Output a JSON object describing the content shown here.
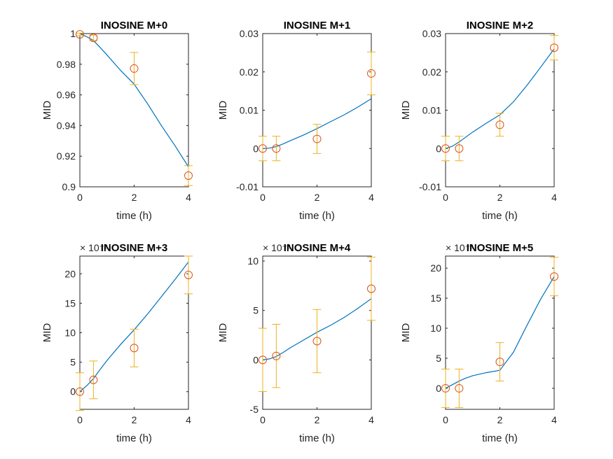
{
  "chart_data": [
    {
      "type": "line",
      "title": "INOSINE M+0",
      "xlabel": "time (h)",
      "ylabel": "MID",
      "exponent": "",
      "xlim": [
        0,
        4
      ],
      "ylim": [
        0.9,
        1.0
      ],
      "xticks": [
        0,
        2,
        4
      ],
      "yticks": [
        0.9,
        0.92,
        0.94,
        0.96,
        0.98,
        1
      ],
      "ytick_labels": [
        "0.9",
        "0.92",
        "0.94",
        "0.96",
        "0.98",
        "1"
      ],
      "fit": {
        "x": [
          0,
          0.25,
          0.5,
          0.75,
          1,
          1.5,
          2,
          2.5,
          3,
          3.5,
          4
        ],
        "y": [
          1.0,
          0.998,
          0.9955,
          0.9908,
          0.986,
          0.976,
          0.967,
          0.954,
          0.94,
          0.927,
          0.913
        ]
      },
      "points": {
        "x": [
          0,
          0.5,
          2,
          4
        ],
        "y": [
          0.9995,
          0.9972,
          0.9772,
          0.9073
        ],
        "err": [
          0.0008,
          0.0018,
          0.0105,
          0.0065
        ]
      }
    },
    {
      "type": "line",
      "title": "INOSINE M+1",
      "xlabel": "time (h)",
      "ylabel": "MID",
      "exponent": "",
      "xlim": [
        0,
        4
      ],
      "ylim": [
        -0.01,
        0.03
      ],
      "xticks": [
        0,
        2,
        4
      ],
      "yticks": [
        -0.01,
        0,
        0.01,
        0.02,
        0.03
      ],
      "ytick_labels": [
        "-0.01",
        "0",
        "0.01",
        "0.02",
        "0.03"
      ],
      "fit": {
        "x": [
          0,
          0.25,
          0.5,
          0.75,
          1,
          1.5,
          2,
          2.5,
          3,
          3.5,
          4
        ],
        "y": [
          0,
          0.0001,
          0.0005,
          0.0012,
          0.002,
          0.0035,
          0.0052,
          0.007,
          0.0088,
          0.0108,
          0.013
        ]
      },
      "points": {
        "x": [
          0,
          0.5,
          2,
          4
        ],
        "y": [
          0,
          0,
          0.0025,
          0.0196
        ],
        "err": [
          0.0032,
          0.0032,
          0.0038,
          0.0056
        ]
      }
    },
    {
      "type": "line",
      "title": "INOSINE M+2",
      "xlabel": "time (h)",
      "ylabel": "MID",
      "exponent": "",
      "xlim": [
        0,
        4
      ],
      "ylim": [
        -0.01,
        0.03
      ],
      "xticks": [
        0,
        2,
        4
      ],
      "yticks": [
        -0.01,
        0,
        0.01,
        0.02,
        0.03
      ],
      "ytick_labels": [
        "-0.01",
        "0",
        "0.01",
        "0.02",
        "0.03"
      ],
      "fit": {
        "x": [
          0,
          0.25,
          0.5,
          0.75,
          1,
          1.5,
          2,
          2.5,
          3,
          3.5,
          4
        ],
        "y": [
          0,
          0.0006,
          0.0017,
          0.003,
          0.0043,
          0.0066,
          0.0088,
          0.0122,
          0.0165,
          0.0212,
          0.026
        ]
      },
      "points": {
        "x": [
          0,
          0.5,
          2,
          4
        ],
        "y": [
          0,
          0,
          0.0062,
          0.0263
        ],
        "err": [
          0.0032,
          0.0032,
          0.003,
          0.0032
        ]
      }
    },
    {
      "type": "line",
      "title": "INOSINE M+3",
      "xlabel": "time (h)",
      "ylabel": "MID",
      "exponent": "× 10⁻³",
      "xlim": [
        0,
        4
      ],
      "ylim": [
        -3,
        23
      ],
      "xticks": [
        0,
        2,
        4
      ],
      "yticks": [
        0,
        5,
        10,
        15,
        20
      ],
      "ytick_labels": [
        "0",
        "5",
        "10",
        "15",
        "20"
      ],
      "fit": {
        "x": [
          0,
          0.25,
          0.5,
          0.75,
          1,
          1.5,
          2,
          2.5,
          3,
          3.5,
          4
        ],
        "y": [
          0,
          1.0,
          2.2,
          3.8,
          5.3,
          8.0,
          10.5,
          13.2,
          16.1,
          19.0,
          22.0
        ]
      },
      "points": {
        "x": [
          0,
          0.5,
          2,
          4
        ],
        "y": [
          0,
          2.0,
          7.4,
          19.8
        ],
        "err": [
          3.2,
          3.2,
          3.2,
          3.2
        ]
      }
    },
    {
      "type": "line",
      "title": "INOSINE M+4",
      "xlabel": "time (h)",
      "ylabel": "MID",
      "exponent": "× 10⁻³",
      "xlim": [
        0,
        4
      ],
      "ylim": [
        -5,
        10.5
      ],
      "xticks": [
        0,
        2,
        4
      ],
      "yticks": [
        -5,
        0,
        5,
        10
      ],
      "ytick_labels": [
        "-5",
        "0",
        "5",
        "10"
      ],
      "fit": {
        "x": [
          0,
          0.25,
          0.5,
          0.75,
          1,
          1.5,
          2,
          2.5,
          3,
          3.5,
          4
        ],
        "y": [
          0,
          0.1,
          0.35,
          0.75,
          1.2,
          2.0,
          2.8,
          3.5,
          4.3,
          5.2,
          6.2
        ]
      },
      "points": {
        "x": [
          0,
          0.5,
          2,
          4
        ],
        "y": [
          0,
          0.4,
          1.9,
          7.2
        ],
        "err": [
          3.2,
          3.2,
          3.2,
          3.2
        ]
      }
    },
    {
      "type": "line",
      "title": "INOSINE M+5",
      "xlabel": "time (h)",
      "ylabel": "MID",
      "exponent": "× 10⁻³",
      "xlim": [
        0,
        4
      ],
      "ylim": [
        -3.5,
        22
      ],
      "xticks": [
        0,
        2,
        4
      ],
      "yticks": [
        0,
        5,
        10,
        15,
        20
      ],
      "ytick_labels": [
        "0",
        "5",
        "10",
        "15",
        "20"
      ],
      "fit": {
        "x": [
          0,
          0.25,
          0.5,
          0.75,
          1,
          1.5,
          2,
          2.5,
          3,
          3.5,
          4
        ],
        "y": [
          0,
          0.6,
          1.2,
          1.7,
          2.1,
          2.6,
          3.0,
          6.0,
          10.5,
          14.8,
          18.6
        ]
      },
      "points": {
        "x": [
          0,
          0.5,
          2,
          4
        ],
        "y": [
          0,
          0,
          4.4,
          18.6
        ],
        "err": [
          3.2,
          3.2,
          3.2,
          3.2
        ]
      }
    }
  ],
  "colors": {
    "fit_line": "#0072bd",
    "marker": "#d95319",
    "errorbar": "#edb120",
    "axis": "#262626"
  }
}
